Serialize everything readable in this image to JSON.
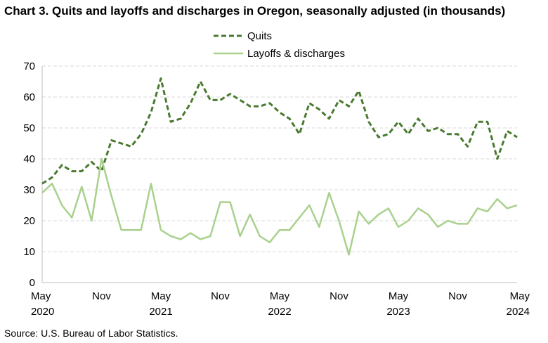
{
  "chart_data": {
    "type": "line",
    "title": "Chart 3. Quits and layoffs and discharges in Oregon, seasonally adjusted (in thousands)",
    "source": "Source: U.S. Bureau of Labor Statistics.",
    "xlabel": "",
    "ylabel": "",
    "ylim": [
      0,
      70
    ],
    "yticks": [
      0,
      10,
      20,
      30,
      40,
      50,
      60,
      70
    ],
    "x_start": "May 2020",
    "x_end": "May 2024",
    "x_ticks": [
      {
        "month": "May",
        "year": "2020"
      },
      {
        "month": "Nov",
        "year": ""
      },
      {
        "month": "May",
        "year": "2021"
      },
      {
        "month": "Nov",
        "year": ""
      },
      {
        "month": "May",
        "year": "2022"
      },
      {
        "month": "Nov",
        "year": ""
      },
      {
        "month": "May",
        "year": "2023"
      },
      {
        "month": "Nov",
        "year": ""
      },
      {
        "month": "May",
        "year": "2024"
      }
    ],
    "grid": true,
    "legend_position": "top-center",
    "series": [
      {
        "name": "Quits",
        "color": "#4a7a30",
        "style": "dashed",
        "values": [
          32,
          34,
          38,
          36,
          36,
          39,
          36,
          46,
          45,
          44,
          48,
          55,
          66,
          52,
          53,
          58,
          65,
          59,
          59,
          61,
          59,
          57,
          57,
          58,
          55,
          53,
          48,
          58,
          56,
          53,
          59,
          57,
          62,
          52,
          47,
          48,
          52,
          48,
          53,
          49,
          50,
          48,
          48,
          44,
          52,
          52,
          40,
          49,
          47
        ]
      },
      {
        "name": "Layoffs & discharges",
        "color": "#a9d18e",
        "style": "solid",
        "values": [
          29,
          32,
          25,
          21,
          31,
          20,
          40,
          28,
          17,
          17,
          17,
          32,
          17,
          15,
          14,
          16,
          14,
          15,
          26,
          26,
          15,
          22,
          15,
          13,
          17,
          17,
          21,
          25,
          18,
          29,
          20,
          9,
          23,
          19,
          22,
          24,
          18,
          20,
          24,
          22,
          18,
          20,
          19,
          19,
          24,
          23,
          27,
          24,
          25
        ]
      }
    ]
  }
}
